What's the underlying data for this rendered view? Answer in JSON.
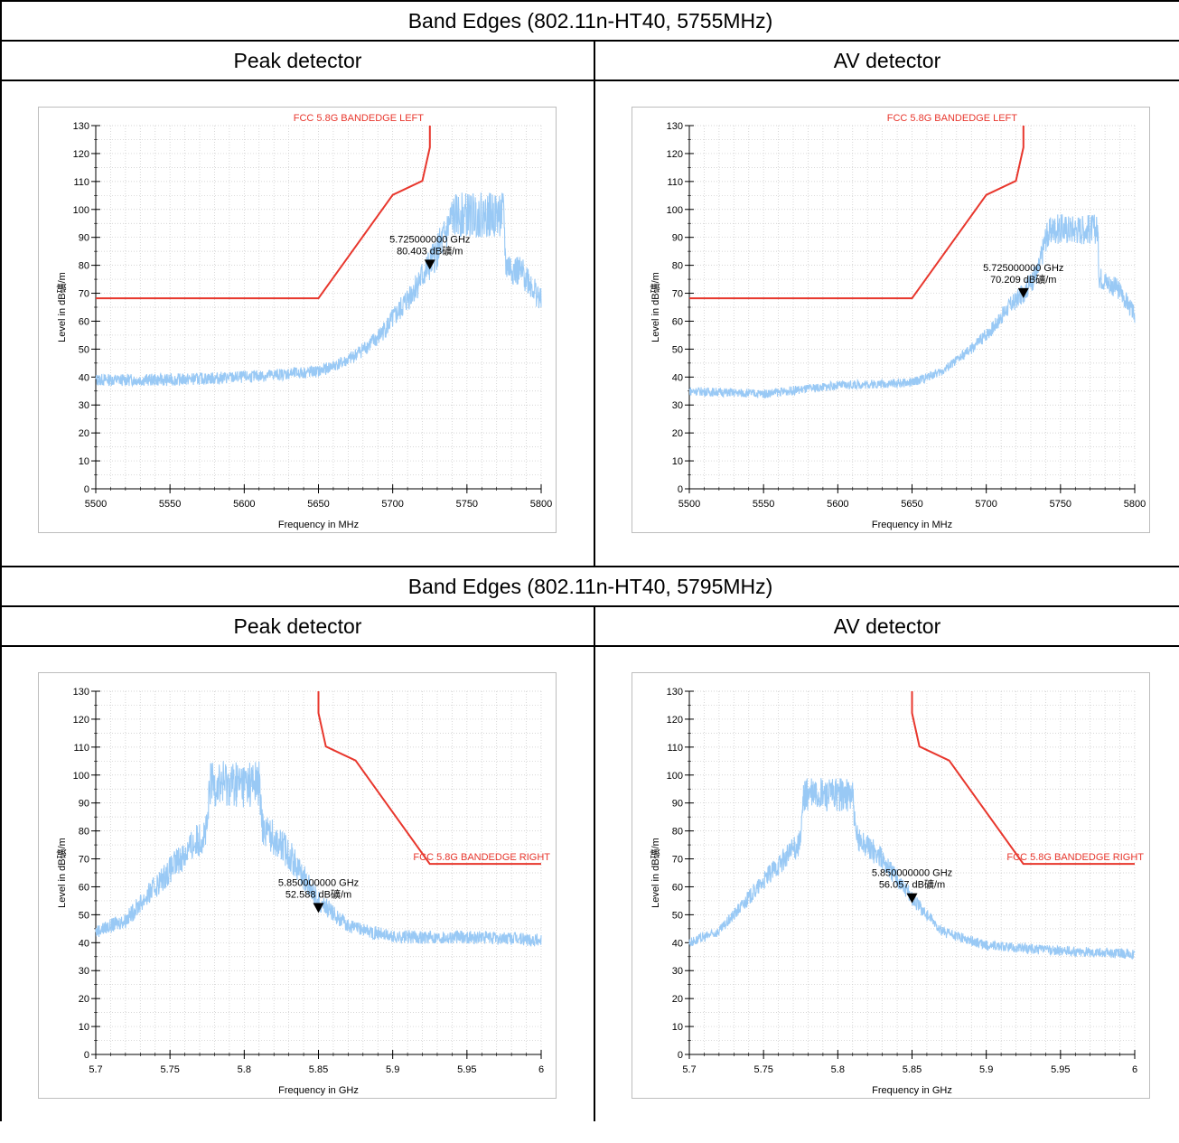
{
  "sections": [
    {
      "title": "Band Edges (802.11n-HT40, 5755MHz)",
      "left_label": "Peak detector",
      "right_label": "AV detector"
    },
    {
      "title": "Band Edges (802.11n-HT40, 5795MHz)",
      "left_label": "Peak detector",
      "right_label": "AV detector"
    }
  ],
  "colors": {
    "trace": "#99c9f5",
    "limit": "#e8372d",
    "grid": "#c8c8c8",
    "marker": "#000000"
  },
  "chart_data": [
    {
      "id": "chart1",
      "type": "line",
      "xlabel": "Frequency in MHz",
      "ylabel": "Level in dB礦/m",
      "xlim": [
        5500,
        5800
      ],
      "ylim": [
        0,
        130
      ],
      "xticks": [
        5500,
        5550,
        5600,
        5650,
        5700,
        5750,
        5800
      ],
      "xtick_labels": [
        "5500",
        "5550",
        "5600",
        "5650",
        "5700",
        "5750",
        "5800"
      ],
      "xminor": 10,
      "yticks": [
        0,
        10,
        20,
        30,
        40,
        50,
        60,
        70,
        80,
        90,
        100,
        110,
        120,
        130
      ],
      "limit": {
        "name": "FCC 5.8G BANDEDGE LEFT",
        "label_pos": "top",
        "points": [
          [
            5500,
            68.2
          ],
          [
            5650,
            68.2
          ],
          [
            5700,
            105.2
          ],
          [
            5720,
            110.2
          ],
          [
            5725,
            122.2
          ],
          [
            5725,
            130
          ]
        ]
      },
      "trace": {
        "anchors": [
          [
            5500,
            39
          ],
          [
            5550,
            39
          ],
          [
            5600,
            40
          ],
          [
            5650,
            42
          ],
          [
            5670,
            46
          ],
          [
            5690,
            54
          ],
          [
            5705,
            64
          ],
          [
            5715,
            72
          ],
          [
            5725,
            80
          ],
          [
            5735,
            90
          ],
          [
            5740,
            97
          ],
          [
            5745,
            98
          ],
          [
            5775,
            98
          ],
          [
            5776,
            80
          ],
          [
            5790,
            76
          ],
          [
            5800,
            67
          ]
        ],
        "noise": 2.2
      },
      "marker": {
        "x": 5725,
        "y": 80.403,
        "freq_label": "5.725000000 GHz",
        "level_label": "80.403 dB礦/m"
      }
    },
    {
      "id": "chart2",
      "type": "line",
      "xlabel": "Frequency in MHz",
      "ylabel": "Level in dB礦/m",
      "xlim": [
        5500,
        5800
      ],
      "ylim": [
        0,
        130
      ],
      "xticks": [
        5500,
        5550,
        5600,
        5650,
        5700,
        5750,
        5800
      ],
      "xtick_labels": [
        "5500",
        "5550",
        "5600",
        "5650",
        "5700",
        "5750",
        "5800"
      ],
      "xminor": 10,
      "yticks": [
        0,
        10,
        20,
        30,
        40,
        50,
        60,
        70,
        80,
        90,
        100,
        110,
        120,
        130
      ],
      "limit": {
        "name": "FCC 5.8G BANDEDGE LEFT",
        "label_pos": "top",
        "points": [
          [
            5500,
            68.2
          ],
          [
            5650,
            68.2
          ],
          [
            5700,
            105.2
          ],
          [
            5720,
            110.2
          ],
          [
            5725,
            122.2
          ],
          [
            5725,
            130
          ]
        ]
      },
      "trace": {
        "anchors": [
          [
            5500,
            35
          ],
          [
            5550,
            34
          ],
          [
            5600,
            37
          ],
          [
            5650,
            38
          ],
          [
            5670,
            42
          ],
          [
            5690,
            50
          ],
          [
            5705,
            58
          ],
          [
            5715,
            65
          ],
          [
            5725,
            70
          ],
          [
            5735,
            78
          ],
          [
            5740,
            90
          ],
          [
            5745,
            93
          ],
          [
            5775,
            93
          ],
          [
            5776,
            76
          ],
          [
            5790,
            71
          ],
          [
            5800,
            62
          ]
        ],
        "noise": 1.6
      },
      "marker": {
        "x": 5725,
        "y": 70.209,
        "freq_label": "5.725000000 GHz",
        "level_label": "70.209 dB礦/m"
      }
    },
    {
      "id": "chart3",
      "type": "line",
      "xlabel": "Frequency in GHz",
      "ylabel": "Level in dB礦/m",
      "xlim": [
        5.7,
        6.0
      ],
      "ylim": [
        0,
        130
      ],
      "xticks": [
        5.7,
        5.75,
        5.8,
        5.85,
        5.9,
        5.95,
        6.0
      ],
      "xtick_labels": [
        "5.7",
        "5.75",
        "5.8",
        "5.85",
        "5.9",
        "5.95",
        "6"
      ],
      "xminor": 0.01,
      "yticks": [
        0,
        10,
        20,
        30,
        40,
        50,
        60,
        70,
        80,
        90,
        100,
        110,
        120,
        130
      ],
      "limit": {
        "name": "FCC 5.8G BANDEDGE RIGHT",
        "label_pos": "right",
        "points": [
          [
            5.85,
            130
          ],
          [
            5.85,
            122.2
          ],
          [
            5.855,
            110.2
          ],
          [
            5.875,
            105.2
          ],
          [
            5.925,
            68.2
          ],
          [
            6.0,
            68.2
          ]
        ]
      },
      "trace": {
        "anchors": [
          [
            5.7,
            44
          ],
          [
            5.72,
            48
          ],
          [
            5.74,
            60
          ],
          [
            5.76,
            72
          ],
          [
            5.775,
            80
          ],
          [
            5.777,
            97
          ],
          [
            5.81,
            97
          ],
          [
            5.812,
            82
          ],
          [
            5.83,
            72
          ],
          [
            5.85,
            55
          ],
          [
            5.87,
            46
          ],
          [
            5.9,
            42
          ],
          [
            5.95,
            42
          ],
          [
            6.0,
            41
          ]
        ],
        "noise": 2.4
      },
      "marker": {
        "x": 5.85,
        "y": 52.588,
        "freq_label": "5.850000000 GHz",
        "level_label": "52.588 dB礦/m"
      }
    },
    {
      "id": "chart4",
      "type": "line",
      "xlabel": "Frequency in GHz",
      "ylabel": "Level in dB礦/m",
      "xlim": [
        5.7,
        6.0
      ],
      "ylim": [
        0,
        130
      ],
      "xticks": [
        5.7,
        5.75,
        5.8,
        5.85,
        5.9,
        5.95,
        6.0
      ],
      "xtick_labels": [
        "5.7",
        "5.75",
        "5.8",
        "5.85",
        "5.9",
        "5.95",
        "6"
      ],
      "xminor": 0.01,
      "yticks": [
        0,
        10,
        20,
        30,
        40,
        50,
        60,
        70,
        80,
        90,
        100,
        110,
        120,
        130
      ],
      "limit": {
        "name": "FCC 5.8G BANDEDGE RIGHT",
        "label_pos": "right",
        "points": [
          [
            5.85,
            130
          ],
          [
            5.85,
            122.2
          ],
          [
            5.855,
            110.2
          ],
          [
            5.875,
            105.2
          ],
          [
            5.925,
            68.2
          ],
          [
            6.0,
            68.2
          ]
        ]
      },
      "trace": {
        "anchors": [
          [
            5.7,
            40
          ],
          [
            5.72,
            44
          ],
          [
            5.74,
            56
          ],
          [
            5.76,
            68
          ],
          [
            5.775,
            76
          ],
          [
            5.777,
            93
          ],
          [
            5.81,
            93
          ],
          [
            5.812,
            78
          ],
          [
            5.83,
            70
          ],
          [
            5.85,
            56
          ],
          [
            5.87,
            44
          ],
          [
            5.9,
            39
          ],
          [
            5.95,
            37
          ],
          [
            6.0,
            36
          ]
        ],
        "noise": 1.8
      },
      "marker": {
        "x": 5.85,
        "y": 56.057,
        "freq_label": "5.850000000 GHz",
        "level_label": "56.057 dB礦/m"
      }
    }
  ]
}
